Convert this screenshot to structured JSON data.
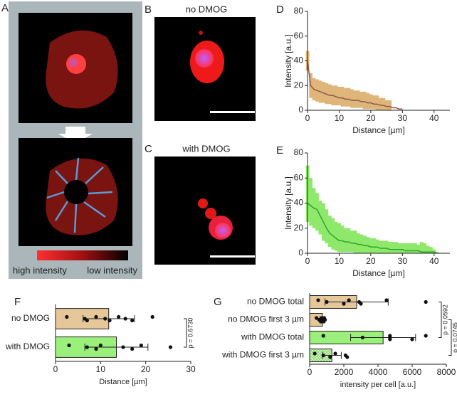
{
  "panel_labels": [
    "A",
    "B",
    "C",
    "D",
    "E",
    "F",
    "G"
  ],
  "images": {
    "b_label": "no DMOG",
    "c_label": "with DMOG",
    "colorbar_high": "high intensity",
    "colorbar_low": "low intensity"
  },
  "chart_data": [
    {
      "type": "line",
      "xlabel": "Distance [µm]",
      "ylabel": "Intensity [a.u.]",
      "xlim": [
        0,
        45
      ],
      "xticks": [
        0,
        10,
        20,
        30,
        40
      ],
      "ylim": [
        0,
        80
      ],
      "yticks": [
        0,
        20,
        40,
        60,
        80
      ],
      "color": "#8b5a4a",
      "band_color": "#dfb57a",
      "x": [
        0,
        1,
        2,
        3,
        4,
        5,
        6,
        7,
        8,
        9,
        10,
        11,
        12,
        13,
        14,
        15,
        16,
        17,
        18,
        19,
        20,
        21,
        22,
        23,
        24,
        25,
        26,
        27,
        28,
        29,
        30
      ],
      "values": [
        40,
        20,
        17,
        16,
        15,
        14,
        13,
        12,
        12,
        11,
        10,
        10,
        9,
        9,
        8,
        8,
        8,
        7,
        7,
        6,
        6,
        5,
        5,
        4,
        4,
        3,
        3,
        2,
        2,
        1,
        1
      ],
      "band_high": [
        48,
        30,
        26,
        25,
        24,
        23,
        22,
        21,
        20,
        20,
        19,
        19,
        18,
        18,
        17,
        16,
        16,
        15,
        15,
        14,
        13,
        12,
        12,
        10,
        10,
        8,
        8,
        null,
        null,
        null,
        null
      ],
      "band_low": [
        32,
        10,
        8,
        7,
        6,
        6,
        5,
        5,
        4,
        4,
        4,
        3,
        3,
        3,
        2,
        2,
        2,
        2,
        1,
        1,
        1,
        1,
        0,
        0,
        0,
        0,
        0,
        null,
        null,
        null,
        null
      ]
    },
    {
      "type": "line",
      "xlabel": "Distance [µm]",
      "ylabel": "Intensity [a.u.]",
      "xlim": [
        0,
        45
      ],
      "xticks": [
        0,
        10,
        20,
        30,
        40
      ],
      "ylim": [
        0,
        80
      ],
      "yticks": [
        0,
        20,
        40,
        60,
        80
      ],
      "color": "#2ea52e",
      "band_color": "#8ee86a",
      "x": [
        0,
        1,
        2,
        3,
        4,
        5,
        6,
        7,
        8,
        9,
        10,
        11,
        12,
        13,
        14,
        15,
        16,
        17,
        18,
        19,
        20,
        21,
        22,
        23,
        24,
        25,
        26,
        27,
        28,
        29,
        30,
        31,
        32,
        33,
        34,
        35,
        36,
        37,
        38,
        39,
        40,
        41
      ],
      "values": [
        40,
        38,
        36,
        35,
        30,
        25,
        20,
        16,
        14,
        12,
        10,
        10,
        9,
        9,
        8,
        8,
        7,
        7,
        6,
        6,
        5,
        5,
        5,
        4,
        4,
        4,
        3,
        3,
        3,
        3,
        3,
        2,
        2,
        2,
        2,
        2,
        1,
        1,
        1,
        1,
        1,
        0
      ],
      "band_high": [
        70,
        60,
        52,
        48,
        42,
        40,
        35,
        30,
        28,
        25,
        24,
        22,
        20,
        20,
        18,
        18,
        16,
        15,
        14,
        13,
        12,
        12,
        11,
        10,
        10,
        10,
        9,
        9,
        9,
        8,
        8,
        8,
        8,
        8,
        8,
        7,
        9,
        8,
        6,
        5,
        3,
        1
      ],
      "band_low": [
        25,
        22,
        20,
        18,
        15,
        10,
        8,
        5,
        3,
        2,
        1,
        1,
        1,
        1,
        1,
        0,
        0,
        0,
        0,
        0,
        0,
        0,
        0,
        0,
        0,
        0,
        0,
        0,
        0,
        0,
        0,
        0,
        0,
        0,
        0,
        0,
        0,
        0,
        0,
        0,
        0,
        0
      ]
    },
    {
      "type": "hbar",
      "xlabel": "Distance [µm]",
      "xlim": [
        0,
        30
      ],
      "xticks": [
        0,
        10,
        20,
        30
      ],
      "categories": [
        "no DMOG",
        "with DMOG"
      ],
      "colors": [
        "#e5c79a",
        "#9af07a"
      ],
      "values": [
        11.8,
        13.5
      ],
      "errors": [
        5.7,
        7
      ],
      "points": [
        [
          2.5,
          6.5,
          7,
          9,
          11,
          12,
          14,
          15.5,
          17,
          21.5
        ],
        [
          3,
          7,
          9,
          10,
          15,
          17,
          19,
          25.5
        ]
      ],
      "annotations": [
        "p = 0.6730"
      ]
    },
    {
      "type": "hbar",
      "xlabel": "intensity per cell [a.u.]",
      "xlim": [
        0,
        8000
      ],
      "xticks": [
        0,
        2000,
        4000,
        6000,
        8000
      ],
      "categories": [
        "no DMOG total",
        "no DMOG first 3 µm",
        "with DMOG total",
        "with DMOG first 3 µm"
      ],
      "colors": [
        "#e5c79a",
        "#e5c79a",
        "#9af07a",
        "#c8f0b4"
      ],
      "values": [
        2750,
        750,
        4300,
        1300
      ],
      "errors": [
        1850,
        150,
        1900,
        550
      ],
      "points": [
        [
          500,
          1000,
          2000,
          2300,
          2900,
          3000,
          4500,
          6800
        ],
        [
          400,
          550,
          650,
          700,
          750,
          800,
          850,
          900
        ],
        [
          800,
          3100,
          4700,
          4700,
          4700,
          6000,
          6800
        ],
        [
          300,
          800,
          1200,
          1500,
          2100,
          2200
        ]
      ],
      "annotations": [
        "p = 0.0592",
        "p = 0.0745"
      ]
    }
  ]
}
